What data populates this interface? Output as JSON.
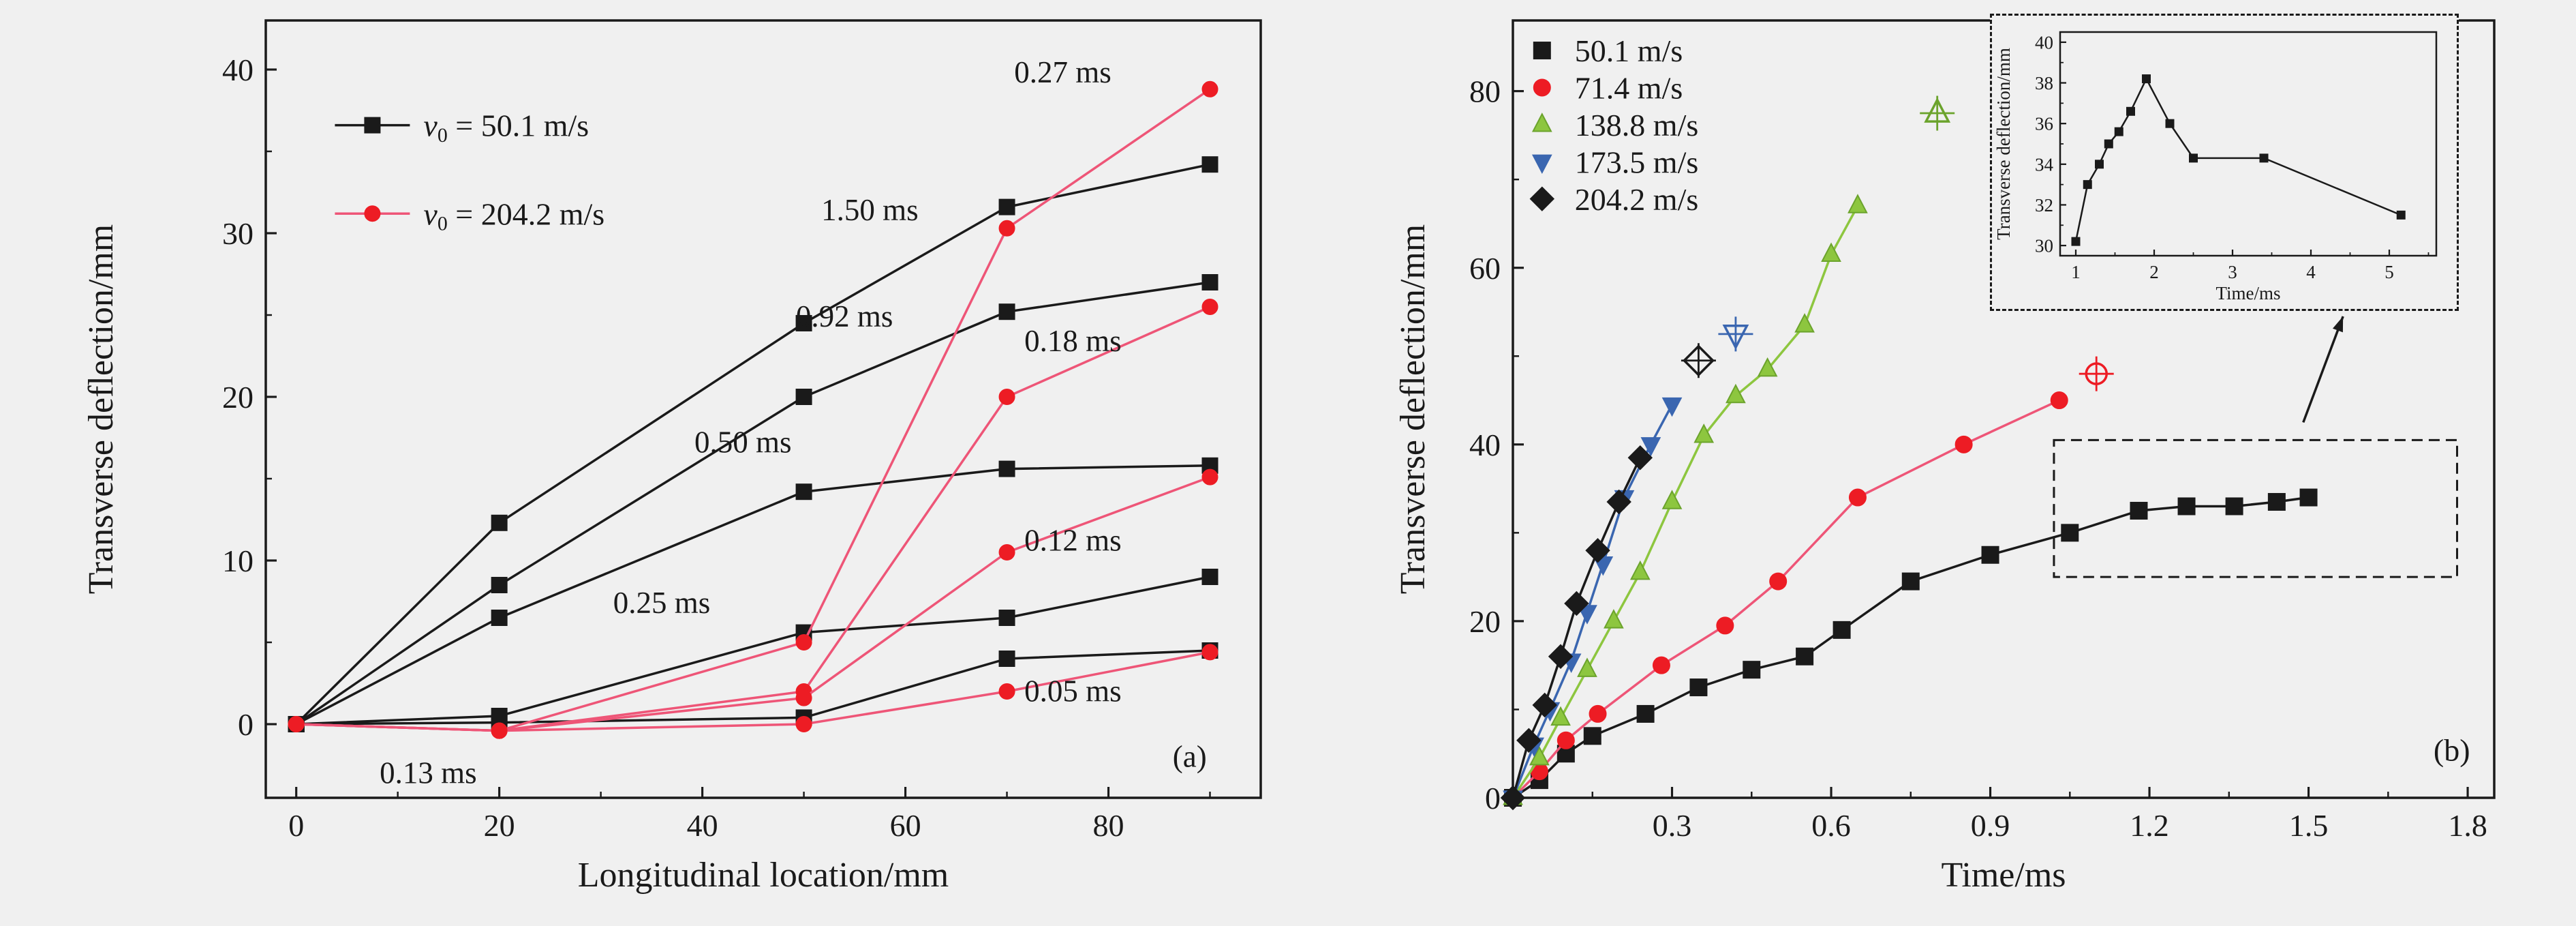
{
  "figure": {
    "background": "#f0f0f0",
    "frame_color": "#1a1a1a",
    "text_color": "#1a1a1a"
  },
  "chart_data": [
    {
      "id": "panel-a",
      "type": "line",
      "xlabel": "Longitudinal location/mm",
      "ylabel": "Transverse deflection/mm",
      "xlim": [
        -3,
        95
      ],
      "ylim": [
        -4.5,
        43
      ],
      "xticks": [
        0,
        20,
        40,
        60,
        80
      ],
      "xtick_labels": [
        "0",
        "20",
        "40",
        "60",
        "80"
      ],
      "xminor": [
        10,
        30,
        50,
        70,
        90
      ],
      "yticks": [
        0,
        10,
        20,
        30,
        40
      ],
      "ytick_labels": [
        "0",
        "10",
        "20",
        "30",
        "40"
      ],
      "yminor": [
        5,
        15,
        25,
        35
      ],
      "legend": {
        "show_line": true,
        "entries": [
          {
            "label": "v₀ = 50.1 m/s",
            "marker": "square",
            "color": "#1a1a1a",
            "line_color": "#1a1a1a",
            "x": 7.5,
            "y": 36.6
          },
          {
            "label": "v₀ = 204.2 m/s",
            "marker": "circle",
            "color": "#ed1c24",
            "line_color": "#ee5577",
            "x": 7.5,
            "y": 31.2
          }
        ]
      },
      "series": [
        {
          "name": "v50.1-t1.50ms",
          "marker": "square",
          "color": "#1a1a1a",
          "x": [
            0,
            20,
            50,
            70,
            90
          ],
          "y": [
            0,
            12.3,
            24.5,
            31.6,
            34.2
          ]
        },
        {
          "name": "v50.1-t0.92ms",
          "marker": "square",
          "color": "#1a1a1a",
          "x": [
            0,
            20,
            50,
            70,
            90
          ],
          "y": [
            0,
            8.5,
            20.0,
            25.2,
            27.0
          ]
        },
        {
          "name": "v50.1-t0.50ms",
          "marker": "square",
          "color": "#1a1a1a",
          "x": [
            0,
            20,
            50,
            70,
            90
          ],
          "y": [
            0,
            6.5,
            14.2,
            15.6,
            15.8
          ]
        },
        {
          "name": "v50.1-t0.25ms",
          "marker": "square",
          "color": "#1a1a1a",
          "x": [
            0,
            20,
            50,
            70,
            90
          ],
          "y": [
            0,
            0.5,
            5.6,
            6.5,
            9.0
          ]
        },
        {
          "name": "v50.1-t0.13ms",
          "marker": "square",
          "color": "#1a1a1a",
          "x": [
            0,
            20,
            50,
            70,
            90
          ],
          "y": [
            0,
            0.1,
            0.4,
            4.0,
            4.5
          ]
        },
        {
          "name": "v204.2-t0.27ms",
          "marker": "circle",
          "color": "#ed1c24",
          "line_color": "#ee5577",
          "x": [
            0,
            20,
            50,
            70,
            90
          ],
          "y": [
            0,
            -0.4,
            5.0,
            30.3,
            38.8
          ]
        },
        {
          "name": "v204.2-t0.18ms",
          "marker": "circle",
          "color": "#ed1c24",
          "line_color": "#ee5577",
          "x": [
            0,
            20,
            50,
            70,
            90
          ],
          "y": [
            0,
            -0.4,
            2.0,
            20.0,
            25.5
          ]
        },
        {
          "name": "v204.2-t0.12ms",
          "marker": "circle",
          "color": "#ed1c24",
          "line_color": "#ee5577",
          "x": [
            0,
            20,
            50,
            70,
            90
          ],
          "y": [
            0,
            -0.4,
            1.6,
            10.5,
            15.1
          ]
        },
        {
          "name": "v204.2-t0.05ms",
          "marker": "circle",
          "color": "#ed1c24",
          "line_color": "#ee5577",
          "x": [
            0,
            20,
            50,
            70,
            90
          ],
          "y": [
            0,
            -0.4,
            0.0,
            2.0,
            4.4
          ]
        }
      ],
      "annotations": [
        {
          "text": "0.27 ms",
          "x": 75.5,
          "y": 39.2,
          "color": "#e0446d"
        },
        {
          "text": "1.50 ms",
          "x": 56.5,
          "y": 30.8,
          "color": "#1a1a1a"
        },
        {
          "text": "0.92 ms",
          "x": 54.0,
          "y": 24.3,
          "color": "#1a1a1a"
        },
        {
          "text": "0.18 ms",
          "x": 76.5,
          "y": 22.8,
          "color": "#e0446d"
        },
        {
          "text": "0.50 ms",
          "x": 44.0,
          "y": 16.6,
          "color": "#1a1a1a"
        },
        {
          "text": "0.12 ms",
          "x": 76.5,
          "y": 10.6,
          "color": "#e0446d"
        },
        {
          "text": "0.25 ms",
          "x": 36.0,
          "y": 6.8,
          "color": "#1a1a1a"
        },
        {
          "text": "0.05 ms",
          "x": 76.5,
          "y": 1.4,
          "color": "#e0446d"
        },
        {
          "text": "0.13 ms",
          "x": 13.0,
          "y": -3.6,
          "color": "#1a1a1a"
        },
        {
          "text": "(a)",
          "x": 88.0,
          "y": -2.6,
          "color": "#1a1a1a",
          "name": "panel-a-label"
        }
      ]
    },
    {
      "id": "panel-b",
      "type": "line",
      "xlabel": "Time/ms",
      "ylabel": "Transverse deflection/mm",
      "xlim": [
        0,
        1.85
      ],
      "ylim": [
        0,
        88
      ],
      "xticks": [
        0.3,
        0.6,
        0.9,
        1.2,
        1.5,
        1.8
      ],
      "xtick_labels": [
        "0.3",
        "0.6",
        "0.9",
        "1.2",
        "1.5",
        "1.8"
      ],
      "xminor": [
        0.15,
        0.45,
        0.75,
        1.05,
        1.35,
        1.65
      ],
      "yticks": [
        0,
        20,
        40,
        60,
        80
      ],
      "ytick_labels": [
        "0",
        "20",
        "40",
        "60",
        "80"
      ],
      "yminor": [
        10,
        30,
        50,
        70
      ],
      "legend": {
        "show_line": false,
        "entries": [
          {
            "label": "50.1 m/s",
            "marker": "square",
            "color": "#1a1a1a",
            "x": 0.055,
            "y": 84.6
          },
          {
            "label": "71.4 m/s",
            "marker": "circle",
            "color": "#ed1c24",
            "x": 0.055,
            "y": 80.4
          },
          {
            "label": "138.8 m/s",
            "marker": "triangle-up",
            "color": "#8dc63f",
            "edge": "#6ba32c",
            "x": 0.055,
            "y": 76.2
          },
          {
            "label": "173.5 m/s",
            "marker": "triangle-down",
            "color": "#3a66b0",
            "x": 0.055,
            "y": 72.0
          },
          {
            "label": "204.2 m/s",
            "marker": "diamond",
            "color": "#1a1a1a",
            "x": 0.055,
            "y": 67.8
          }
        ]
      },
      "series": [
        {
          "name": "v50.1",
          "marker": "square",
          "color": "#1a1a1a",
          "x": [
            0,
            0.05,
            0.1,
            0.15,
            0.25,
            0.35,
            0.45,
            0.55,
            0.62,
            0.75,
            0.9,
            1.05,
            1.18,
            1.27,
            1.36,
            1.44,
            1.5
          ],
          "y": [
            0,
            2,
            5,
            7,
            9.5,
            12.5,
            14.5,
            16,
            19,
            24.5,
            27.5,
            30,
            32.5,
            33,
            33,
            33.5,
            34
          ]
        },
        {
          "name": "v71.4",
          "marker": "circle",
          "color": "#ed1c24",
          "line_color": "#ee5577",
          "x": [
            0,
            0.05,
            0.1,
            0.16,
            0.28,
            0.4,
            0.5,
            0.65,
            0.85,
            1.03
          ],
          "y": [
            0,
            3,
            6.5,
            9.5,
            15,
            19.5,
            24.5,
            34,
            40,
            45
          ]
        },
        {
          "name": "v71.4-failure-point",
          "marker": "circle",
          "color": "#ed1c24",
          "marker_only": true,
          "open": true,
          "plus": true,
          "msize": 1.25,
          "x": [
            1.1
          ],
          "y": [
            48
          ]
        },
        {
          "name": "v138.8",
          "marker": "triangle-up",
          "color": "#8dc63f",
          "edge": "#6ba32c",
          "line_color": "#8dc63f",
          "x": [
            0,
            0.05,
            0.09,
            0.14,
            0.19,
            0.24,
            0.3,
            0.36,
            0.42,
            0.48,
            0.55,
            0.6,
            0.65
          ],
          "y": [
            0,
            4.5,
            9,
            14.5,
            20,
            25.5,
            33.5,
            41,
            45.5,
            48.5,
            53.5,
            61.5,
            67
          ]
        },
        {
          "name": "v138.8-failure-point",
          "marker": "triangle-up",
          "color": "#8dc63f",
          "edge": "#6ba32c",
          "marker_only": true,
          "open": true,
          "plus": true,
          "msize": 1.25,
          "x": [
            0.8
          ],
          "y": [
            77.5
          ]
        },
        {
          "name": "v173.5",
          "marker": "triangle-down",
          "color": "#3a66b0",
          "x": [
            0,
            0.04,
            0.07,
            0.11,
            0.14,
            0.17,
            0.21,
            0.26,
            0.3
          ],
          "y": [
            0,
            6,
            10,
            15.5,
            21,
            26.5,
            34,
            40,
            44.5
          ]
        },
        {
          "name": "v173.5-failure-point",
          "marker": "triangle-down",
          "color": "#3a66b0",
          "marker_only": true,
          "open": true,
          "plus": true,
          "msize": 1.25,
          "x": [
            0.42
          ],
          "y": [
            52.5
          ]
        },
        {
          "name": "v204.2",
          "marker": "diamond",
          "color": "#1a1a1a",
          "x": [
            0,
            0.03,
            0.06,
            0.09,
            0.12,
            0.16,
            0.2,
            0.24
          ],
          "y": [
            0,
            6.5,
            10.5,
            16,
            22,
            28,
            33.5,
            38.5
          ]
        },
        {
          "name": "v204.2-failure-point",
          "marker": "diamond",
          "color": "#1a1a1a",
          "marker_only": true,
          "open": true,
          "plus": true,
          "msize": 1.25,
          "x": [
            0.35
          ],
          "y": [
            49.5
          ]
        }
      ],
      "annotations": [
        {
          "text": "(b)",
          "x": 1.77,
          "y": 4.2,
          "color": "#1a1a1a",
          "name": "panel-b-label"
        }
      ],
      "dashed_rect": {
        "x1": 1.02,
        "y1": 25.0,
        "x2": 1.78,
        "y2": 40.5
      },
      "arrow": {
        "x1": 1.49,
        "y1": 42.5,
        "x2": 1.565,
        "y2": 54.5
      }
    },
    {
      "id": "inset",
      "type": "line",
      "xlabel": "Time/ms",
      "ylabel": "Transverse deflection/mm",
      "xlim": [
        0.8,
        5.6
      ],
      "ylim": [
        29.5,
        40.5
      ],
      "xticks": [
        1,
        2,
        3,
        4,
        5
      ],
      "xtick_labels": [
        "1",
        "2",
        "3",
        "4",
        "5"
      ],
      "xminor": [
        1.5,
        2.5,
        3.5,
        4.5,
        5.5
      ],
      "yticks": [
        30,
        32,
        34,
        36,
        38,
        40
      ],
      "ytick_labels": [
        "30",
        "32",
        "34",
        "36",
        "38",
        "40"
      ],
      "yminor": [
        31,
        33,
        35,
        37,
        39
      ],
      "series": [
        {
          "name": "v50.1-long-time",
          "marker": "square",
          "color": "#1a1a1a",
          "x": [
            1.0,
            1.15,
            1.3,
            1.42,
            1.55,
            1.7,
            1.9,
            2.2,
            2.5,
            3.4,
            5.15
          ],
          "y": [
            30.2,
            33.0,
            34.0,
            35.0,
            35.6,
            36.6,
            38.2,
            36.0,
            34.3,
            34.3,
            31.5
          ]
        }
      ],
      "annotations": []
    }
  ]
}
